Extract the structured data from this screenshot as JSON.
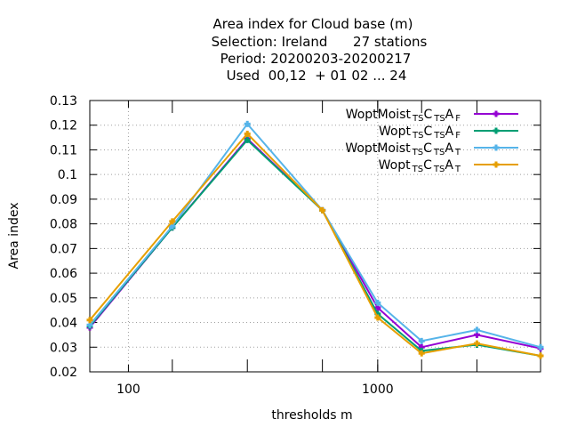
{
  "chart_data": {
    "type": "line",
    "title_lines": [
      "Area index  for Cloud base (m)",
      "Selection: Ireland      27 stations",
      "Period: 20200203-20200217",
      "Used  00,12  + 01 02 ... 24"
    ],
    "xlabel": "thresholds m",
    "ylabel": "Area index",
    "x_scale": "log",
    "xlim": [
      70,
      4500
    ],
    "ylim": [
      0.02,
      0.13
    ],
    "x_ticks": [
      100,
      1000
    ],
    "x_tick_labels": [
      "100",
      "1000"
    ],
    "y_ticks": [
      0.02,
      0.03,
      0.04,
      0.05,
      0.06,
      0.07,
      0.08,
      0.09,
      0.1,
      0.11,
      0.12,
      0.13
    ],
    "y_tick_labels": [
      "0.02",
      "0.03",
      "0.04",
      "0.05",
      "0.06",
      "0.07",
      "0.08",
      "0.09",
      "0.1",
      "0.11",
      "0.12",
      "0.13"
    ],
    "grid": true,
    "legend_position": "top-right",
    "x": [
      70,
      150,
      300,
      600,
      1000,
      1500,
      2500,
      4500
    ],
    "series": [
      {
        "name": "WoptMoist TS CTS A F",
        "legend": [
          {
            "t": "WoptMoist"
          },
          {
            "t": "TS",
            "sub": true
          },
          {
            "t": "C"
          },
          {
            "t": "TS",
            "sub": true
          },
          {
            "t": "A"
          },
          {
            "t": "F",
            "sub": true
          }
        ],
        "color": "#9400d3",
        "marker": "plus",
        "values": [
          0.038,
          0.0785,
          0.1145,
          0.0855,
          0.046,
          0.03,
          0.035,
          0.0295
        ]
      },
      {
        "name": "Wopt TS CTS A F",
        "legend": [
          {
            "t": "Wopt"
          },
          {
            "t": "TS",
            "sub": true
          },
          {
            "t": "C"
          },
          {
            "t": "TS",
            "sub": true
          },
          {
            "t": "A"
          },
          {
            "t": "F",
            "sub": true
          }
        ],
        "color": "#009e73",
        "marker": "plus",
        "values": [
          0.0385,
          0.0785,
          0.114,
          0.0855,
          0.0435,
          0.0285,
          0.031,
          0.0265
        ]
      },
      {
        "name": "WoptMoist TS CTS A T",
        "legend": [
          {
            "t": "WoptMoist"
          },
          {
            "t": "TS",
            "sub": true
          },
          {
            "t": "C"
          },
          {
            "t": "TS",
            "sub": true
          },
          {
            "t": "A"
          },
          {
            "t": "T",
            "sub": true
          }
        ],
        "color": "#56b4e9",
        "marker": "plus",
        "values": [
          0.039,
          0.079,
          0.1205,
          0.0855,
          0.048,
          0.0325,
          0.037,
          0.03
        ]
      },
      {
        "name": "Wopt TS CTS A T",
        "legend": [
          {
            "t": "Wopt"
          },
          {
            "t": "TS",
            "sub": true
          },
          {
            "t": "C"
          },
          {
            "t": "TS",
            "sub": true
          },
          {
            "t": "A"
          },
          {
            "t": "T",
            "sub": true
          }
        ],
        "color": "#e69f00",
        "marker": "plus",
        "values": [
          0.041,
          0.081,
          0.1165,
          0.0855,
          0.042,
          0.0275,
          0.0315,
          0.0265
        ]
      }
    ]
  }
}
